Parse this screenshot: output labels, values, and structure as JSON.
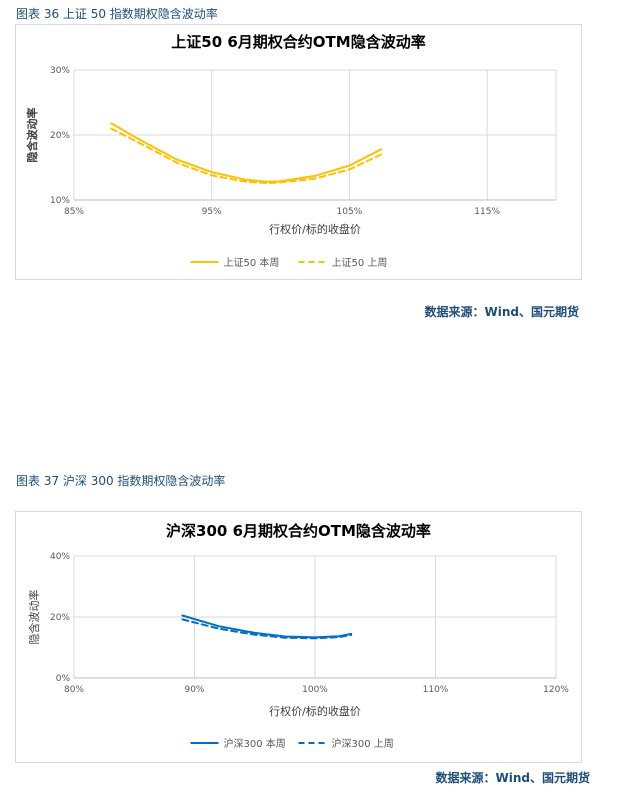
{
  "figure1": {
    "caption": "图表 36 上证 50 指数期权隐含波动率",
    "source": "数据来源：Wind、国元期货"
  },
  "figure2": {
    "caption": "图表 37 沪深 300 指数期权隐含波动率",
    "source": "数据来源：Wind、国元期货"
  },
  "chart_data": [
    {
      "type": "line",
      "title": "上证50 6月期权合约OTM隐含波动率",
      "xlabel": "行权价/标的收盘价",
      "ylabel": "隐含波动率",
      "xlim": [
        0.85,
        1.2
      ],
      "ylim": [
        0.1,
        0.3
      ],
      "x_ticks": [
        "85%",
        "95%",
        "105%",
        "115%"
      ],
      "x_tick_values": [
        0.85,
        0.95,
        1.05,
        1.15
      ],
      "y_ticks": [
        "10%",
        "20%",
        "30%"
      ],
      "y_tick_values": [
        0.1,
        0.2,
        0.3
      ],
      "grid": true,
      "legend_position": "bottom",
      "series": [
        {
          "name": "上证50 本周",
          "color": "#ffc000",
          "style": "solid",
          "x": [
            0.877,
            0.9,
            0.925,
            0.95,
            0.975,
            0.99,
            1.0,
            1.025,
            1.05,
            1.073
          ],
          "y": [
            0.218,
            0.19,
            0.162,
            0.143,
            0.131,
            0.128,
            0.129,
            0.137,
            0.153,
            0.178
          ]
        },
        {
          "name": "上证50 上周",
          "color": "#ffc000",
          "style": "dashed",
          "x": [
            0.877,
            0.9,
            0.925,
            0.95,
            0.975,
            0.99,
            1.0,
            1.025,
            1.05,
            1.073
          ],
          "y": [
            0.21,
            0.185,
            0.157,
            0.138,
            0.128,
            0.126,
            0.127,
            0.133,
            0.147,
            0.17
          ]
        }
      ]
    },
    {
      "type": "line",
      "title": "沪深300 6月期权合约OTM隐含波动率",
      "xlabel": "行权价/标的收盘价",
      "ylabel": "隐含波动率",
      "xlim": [
        0.8,
        1.2
      ],
      "ylim": [
        0.0,
        0.4
      ],
      "x_ticks": [
        "80%",
        "90%",
        "100%",
        "110%",
        "120%"
      ],
      "x_tick_values": [
        0.8,
        0.9,
        1.0,
        1.1,
        1.2
      ],
      "y_ticks": [
        "0%",
        "20%",
        "40%"
      ],
      "y_tick_values": [
        0.0,
        0.2,
        0.4
      ],
      "grid": true,
      "legend_position": "bottom",
      "series": [
        {
          "name": "沪深300 本周",
          "color": "#0070c0",
          "style": "solid",
          "x": [
            0.89,
            0.92,
            0.95,
            0.975,
            1.0,
            1.02,
            1.03
          ],
          "y": [
            0.205,
            0.17,
            0.148,
            0.136,
            0.133,
            0.137,
            0.145
          ]
        },
        {
          "name": "沪深300 上周",
          "color": "#0070c0",
          "style": "dashed",
          "x": [
            0.89,
            0.92,
            0.95,
            0.975,
            1.0,
            1.02,
            1.03
          ],
          "y": [
            0.192,
            0.162,
            0.142,
            0.132,
            0.13,
            0.134,
            0.141
          ]
        }
      ]
    }
  ]
}
